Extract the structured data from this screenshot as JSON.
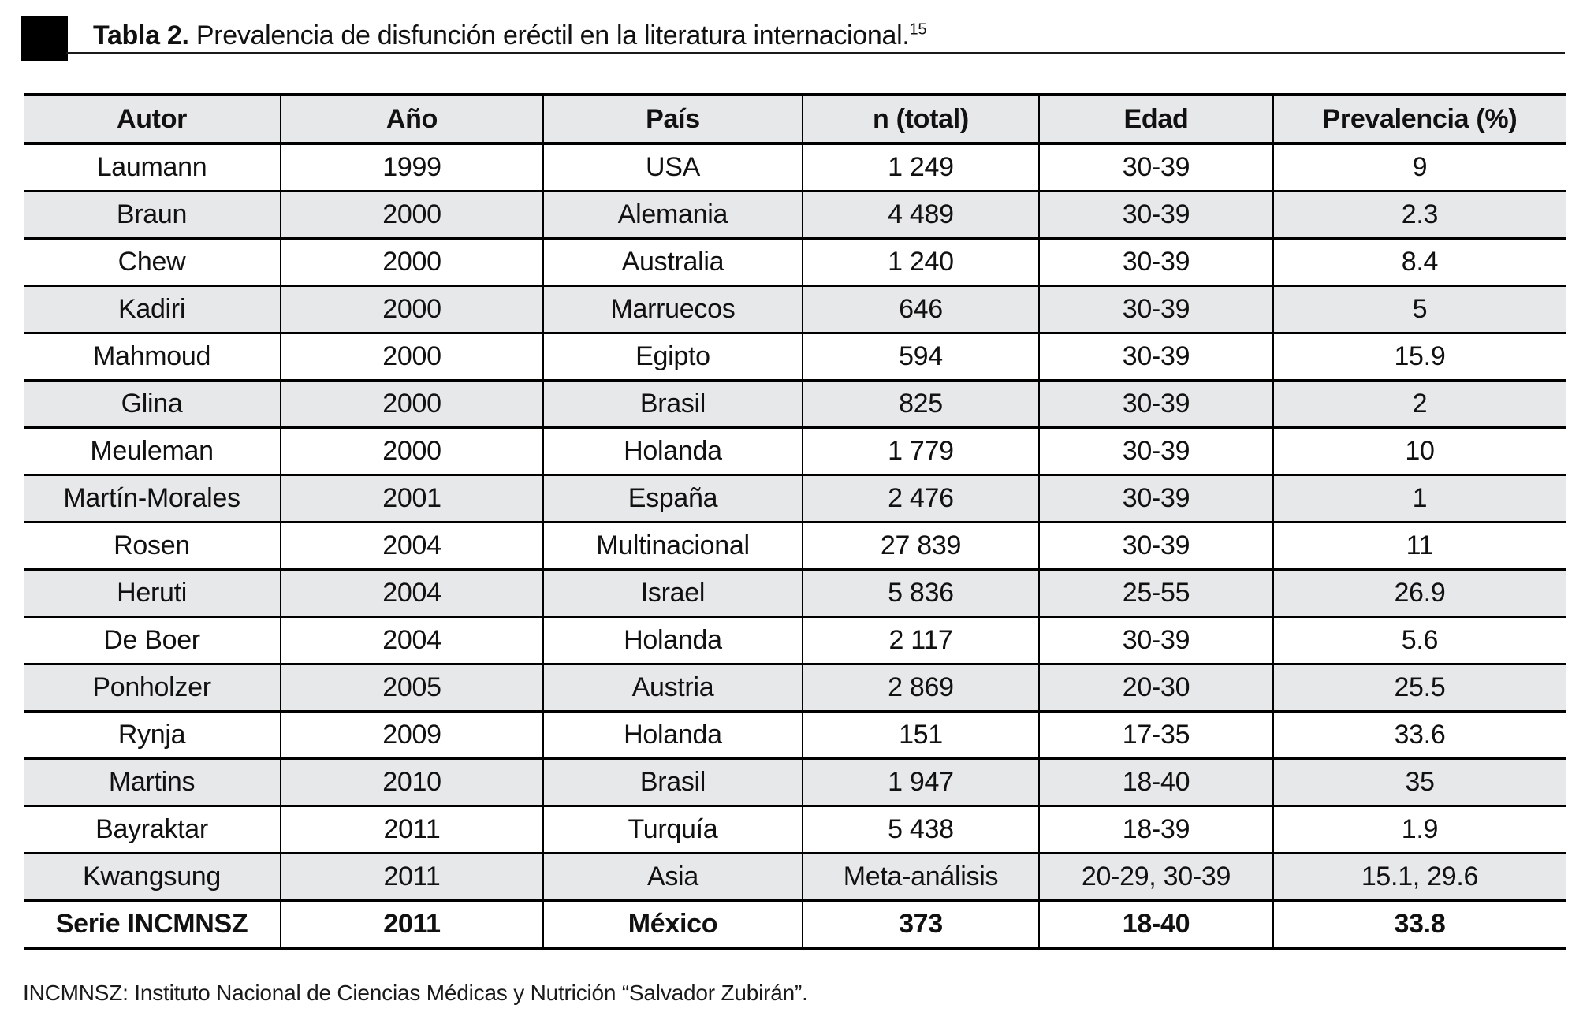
{
  "title": {
    "label": "Tabla 2.",
    "text": " Prevalencia de disfunción eréctil en la literatura internacional.",
    "reference_superscript": "15"
  },
  "table": {
    "columns": [
      "Autor",
      "Año",
      "País",
      "n (total)",
      "Edad",
      "Prevalencia (%)"
    ],
    "column_widths_percent": [
      16.67,
      17.02,
      16.82,
      15.34,
      15.18,
      18.97
    ],
    "rows": [
      {
        "cells": [
          "Laumann",
          "1999",
          "USA",
          "1 249",
          "30-39",
          "9"
        ],
        "emphasis": false
      },
      {
        "cells": [
          "Braun",
          "2000",
          "Alemania",
          "4 489",
          "30-39",
          "2.3"
        ],
        "emphasis": false
      },
      {
        "cells": [
          "Chew",
          "2000",
          "Australia",
          "1 240",
          "30-39",
          "8.4"
        ],
        "emphasis": false
      },
      {
        "cells": [
          "Kadiri",
          "2000",
          "Marruecos",
          "646",
          "30-39",
          "5"
        ],
        "emphasis": false
      },
      {
        "cells": [
          "Mahmoud",
          "2000",
          "Egipto",
          "594",
          "30-39",
          "15.9"
        ],
        "emphasis": false
      },
      {
        "cells": [
          "Glina",
          "2000",
          "Brasil",
          "825",
          "30-39",
          "2"
        ],
        "emphasis": false
      },
      {
        "cells": [
          "Meuleman",
          "2000",
          "Holanda",
          "1 779",
          "30-39",
          "10"
        ],
        "emphasis": false
      },
      {
        "cells": [
          "Martín-Morales",
          "2001",
          "España",
          "2 476",
          "30-39",
          "1"
        ],
        "emphasis": false
      },
      {
        "cells": [
          "Rosen",
          "2004",
          "Multinacional",
          "27 839",
          "30-39",
          "11"
        ],
        "emphasis": false
      },
      {
        "cells": [
          "Heruti",
          "2004",
          "Israel",
          "5 836",
          "25-55",
          "26.9"
        ],
        "emphasis": false
      },
      {
        "cells": [
          "De Boer",
          "2004",
          "Holanda",
          "2 117",
          "30-39",
          "5.6"
        ],
        "emphasis": false
      },
      {
        "cells": [
          "Ponholzer",
          "2005",
          "Austria",
          "2 869",
          "20-30",
          "25.5"
        ],
        "emphasis": false
      },
      {
        "cells": [
          "Rynja",
          "2009",
          "Holanda",
          "151",
          "17-35",
          "33.6"
        ],
        "emphasis": false
      },
      {
        "cells": [
          "Martins",
          "2010",
          "Brasil",
          "1 947",
          "18-40",
          "35"
        ],
        "emphasis": false
      },
      {
        "cells": [
          "Bayraktar",
          "2011",
          "Turquía",
          "5 438",
          "18-39",
          "1.9"
        ],
        "emphasis": false
      },
      {
        "cells": [
          "Kwangsung",
          "2011",
          "Asia",
          "Meta-análisis",
          "20-29, 30-39",
          "15.1, 29.6"
        ],
        "emphasis": false
      },
      {
        "cells": [
          "Serie INCMNSZ",
          "2011",
          "México",
          "373",
          "18-40",
          "33.8"
        ],
        "emphasis": true
      }
    ]
  },
  "footnote": "INCMNSZ: Instituto Nacional de Ciencias Médicas y Nutrición “Salvador Zubirán”.",
  "colors": {
    "row_shade": "#e7e8e9",
    "border": "#000000",
    "marker": "#000000"
  }
}
